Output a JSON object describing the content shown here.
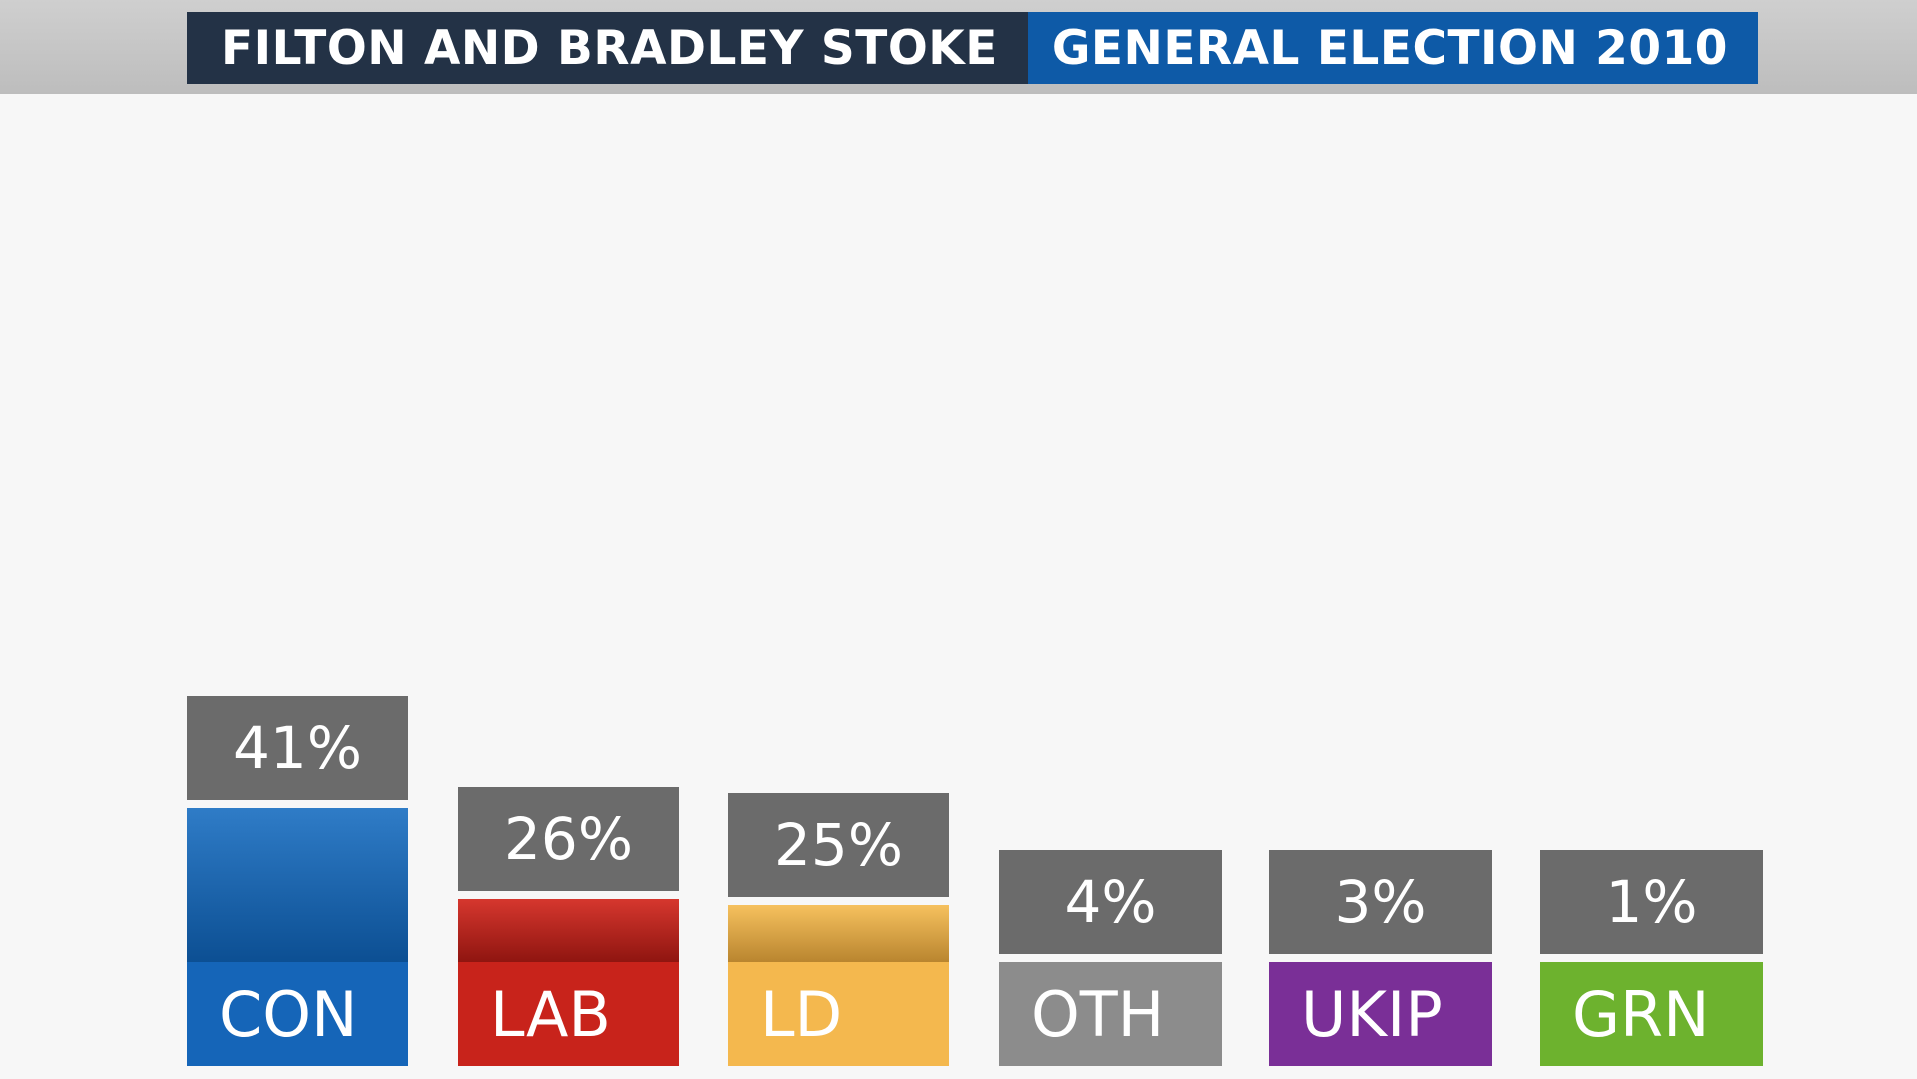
{
  "header": {
    "constituency": "FILTON AND BRADLEY STOKE",
    "election": "GENERAL ELECTION 2010"
  },
  "colors": {
    "CON": "#1565b8",
    "LAB": "#c8231b",
    "LD": "#f4b84e",
    "OTH": "#8c8c8c",
    "UKIP": "#7a2f97",
    "GRN": "#6db22e",
    "label_box": "#6b6b6b"
  },
  "chart_data": {
    "type": "bar",
    "title": "FILTON AND BRADLEY STOKE GENERAL ELECTION 2010",
    "categories": [
      "CON",
      "LAB",
      "LD",
      "OTH",
      "UKIP",
      "GRN"
    ],
    "values": [
      41,
      26,
      25,
      4,
      3,
      1
    ],
    "data_labels": [
      "41%",
      "26%",
      "25%",
      "4%",
      "3%",
      "1%"
    ],
    "xlabel": "",
    "ylabel": "",
    "grid": false,
    "legend": "none"
  }
}
